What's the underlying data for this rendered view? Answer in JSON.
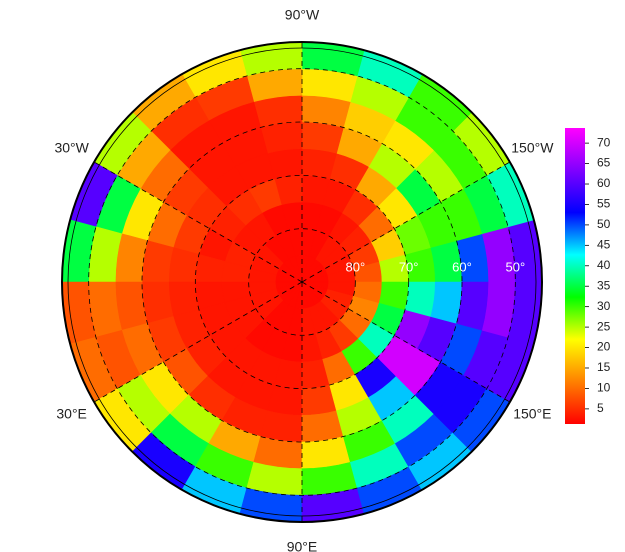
{
  "chart_data": {
    "type": "polar_map",
    "lat_edges": [
      90,
      85,
      80,
      75,
      70,
      65,
      60,
      55,
      50,
      45
    ],
    "lon_edges": [
      -180,
      -165,
      -150,
      -135,
      -120,
      -105,
      -90,
      -75,
      -60,
      -45,
      -30,
      -15,
      0,
      15,
      30,
      45,
      60,
      75,
      90,
      105,
      120,
      135,
      150,
      165,
      180
    ],
    "values": [
      [
        2,
        2,
        2,
        2,
        2,
        2,
        2,
        2,
        2,
        2,
        2,
        2,
        2,
        2,
        2,
        2,
        2,
        2,
        2,
        2,
        2,
        2,
        2,
        2
      ],
      [
        3,
        3,
        3,
        3,
        2,
        2,
        2,
        2,
        2,
        3,
        3,
        3,
        3,
        3,
        3,
        2,
        2,
        2,
        3,
        3,
        3,
        4,
        4,
        3
      ],
      [
        8,
        6,
        4,
        3,
        2,
        2,
        2,
        2,
        3,
        3,
        4,
        4,
        3,
        3,
        3,
        2,
        2,
        2,
        3,
        4,
        6,
        10,
        12,
        10
      ],
      [
        25,
        18,
        10,
        5,
        3,
        3,
        4,
        6,
        5,
        4,
        3,
        4,
        3,
        3,
        3,
        3,
        3,
        3,
        4,
        10,
        30,
        40,
        35,
        30
      ],
      [
        30,
        28,
        20,
        15,
        5,
        4,
        3,
        3,
        3,
        5,
        6,
        5,
        4,
        4,
        4,
        3,
        3,
        3,
        6,
        20,
        55,
        70,
        65,
        40
      ],
      [
        35,
        30,
        35,
        25,
        15,
        6,
        4,
        3,
        3,
        6,
        10,
        6,
        5,
        6,
        8,
        5,
        4,
        4,
        10,
        25,
        45,
        70,
        60,
        45
      ],
      [
        50,
        30,
        25,
        20,
        18,
        12,
        5,
        3,
        3,
        10,
        20,
        12,
        8,
        10,
        20,
        25,
        15,
        10,
        20,
        30,
        40,
        55,
        50,
        60
      ],
      [
        65,
        35,
        30,
        30,
        25,
        20,
        15,
        6,
        5,
        15,
        35,
        25,
        10,
        8,
        25,
        35,
        30,
        25,
        30,
        40,
        50,
        55,
        60,
        65
      ],
      [
        60,
        40,
        25,
        30,
        40,
        35,
        25,
        20,
        15,
        25,
        60,
        35,
        8,
        10,
        20,
        55,
        45,
        50,
        60,
        50,
        45,
        50,
        60,
        60
      ]
    ],
    "meridians": [
      {
        "value": -90,
        "label": "90°W"
      },
      {
        "value": -30,
        "label": "30°W"
      },
      {
        "value": -150,
        "label": "150°W"
      },
      {
        "value": 30,
        "label": "30°E"
      },
      {
        "value": 150,
        "label": "150°E"
      },
      {
        "value": 90,
        "label": "90°E"
      }
    ],
    "parallels": [
      {
        "value": 80,
        "label": "80°"
      },
      {
        "value": 70,
        "label": "70°"
      },
      {
        "value": 60,
        "label": "60°"
      },
      {
        "value": 50,
        "label": "50°"
      }
    ],
    "colorbar": {
      "ylim": [
        1.3,
        73.7
      ],
      "yticks": [
        5,
        10,
        15,
        20,
        25,
        30,
        35,
        40,
        45,
        50,
        55,
        60,
        65,
        70
      ],
      "colors": [
        "#ff0000",
        "#ff8000",
        "#ffff00",
        "#00ff00",
        "#00ffff",
        "#0000ff",
        "#8000ff",
        "#ff00ff"
      ]
    }
  }
}
